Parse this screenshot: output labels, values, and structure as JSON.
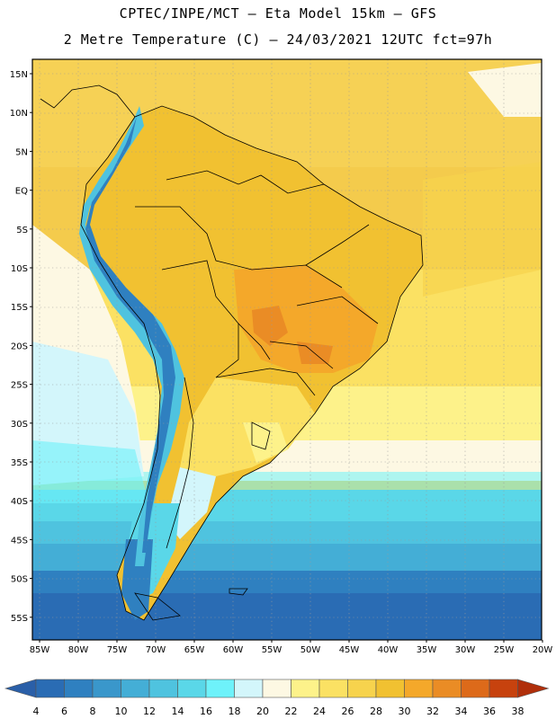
{
  "header": {
    "line1": "CPTEC/INPE/MCT –  Eta Model 15km – GFS",
    "line2": "2 Metre Temperature (C) – 24/03/2021 12UTC fct=97h"
  },
  "axes": {
    "lat_labels": [
      "15N",
      "10N",
      "5N",
      "EQ",
      "5S",
      "10S",
      "15S",
      "20S",
      "25S",
      "30S",
      "35S",
      "40S",
      "45S",
      "50S",
      "55S"
    ],
    "lon_labels": [
      "85W",
      "80W",
      "75W",
      "70W",
      "65W",
      "60W",
      "55W",
      "50W",
      "45W",
      "40W",
      "35W",
      "30W",
      "25W",
      "20W"
    ]
  },
  "colorbar": {
    "levels": [
      "4",
      "6",
      "8",
      "10",
      "12",
      "14",
      "16",
      "18",
      "20",
      "22",
      "24",
      "26",
      "28",
      "30",
      "32",
      "34",
      "36",
      "38"
    ],
    "colors": [
      "#2a6cb4",
      "#2f80c0",
      "#3a97cb",
      "#44aed6",
      "#4fc3df",
      "#5ad7e8",
      "#6ef2fa",
      "#d3f6fb",
      "#fdf8e3",
      "#fdf28a",
      "#fbe163",
      "#f7d34d",
      "#f1c131",
      "#f4a82a",
      "#ea8c25",
      "#dd6a1a",
      "#c7420e",
      "#b02f0b"
    ]
  },
  "chart_data": {
    "type": "heatmap",
    "title": "2 Metre Temperature (C) – 24/03/2021 12UTC fct=97h",
    "variable": "2 Metre Temperature",
    "units": "C",
    "model": "Eta Model 15km – GFS",
    "source": "CPTEC/INPE/MCT",
    "run": "24/03/2021 12UTC",
    "forecast_hour": 97,
    "lon_range": [
      -86,
      -20
    ],
    "lat_range": [
      -58,
      17
    ],
    "levels": [
      4,
      6,
      8,
      10,
      12,
      14,
      16,
      18,
      20,
      22,
      24,
      26,
      28,
      30,
      32,
      34,
      36,
      38
    ]
  }
}
